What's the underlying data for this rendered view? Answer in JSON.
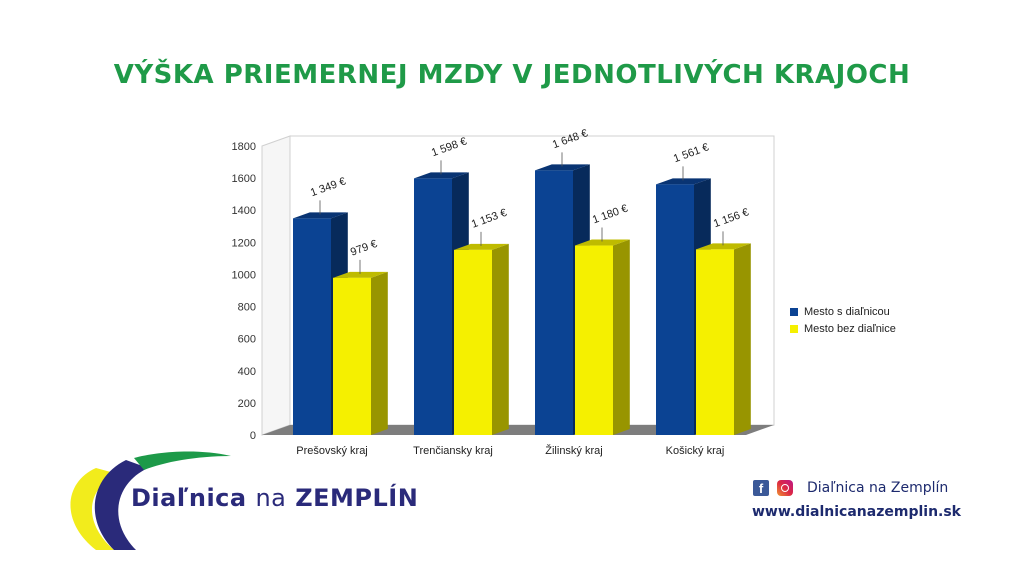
{
  "header": {
    "title": "VÝŠKA PRIEMERNEJ MZDY V JEDNOTLIVÝCH KRAJOCH"
  },
  "colors": {
    "title": "#1f9a48",
    "series_with": "#0b4393",
    "series_without": "#f5f000",
    "brand_green": "#1d9a49",
    "brand_blue": "#2a2a7a",
    "brand_yellow": "#f2ec1c"
  },
  "chart_data": {
    "type": "bar",
    "title": "",
    "categories": [
      "Prešovský kraj",
      "Trenčiansky kraj",
      "Žilinský kraj",
      "Košický kraj"
    ],
    "series": [
      {
        "name": "Mesto s diaľnicou",
        "values": [
          1349,
          1598,
          1648,
          1561
        ],
        "labels": [
          "1 349 €",
          "1 598 €",
          "1 648 €",
          "1 561 €"
        ]
      },
      {
        "name": "Mesto bez diaľnice",
        "values": [
          979,
          1153,
          1180,
          1156
        ],
        "labels": [
          "979 €",
          "1 153 €",
          "1 180 €",
          "1 156 €"
        ]
      }
    ],
    "ylim": [
      0,
      1800
    ],
    "yticks": [
      0,
      200,
      400,
      600,
      800,
      1000,
      1200,
      1400,
      1600,
      1800
    ],
    "legend": "right",
    "style": "3d"
  },
  "brand": {
    "name_part1": "Diaľnica",
    "name_part2": "na",
    "name_part3": "ZEMPLÍN"
  },
  "footer": {
    "social_label": "Diaľnica na Zemplín",
    "website": "www.dialnicanazemplin.sk",
    "icons": [
      "facebook-icon",
      "instagram-icon"
    ]
  }
}
